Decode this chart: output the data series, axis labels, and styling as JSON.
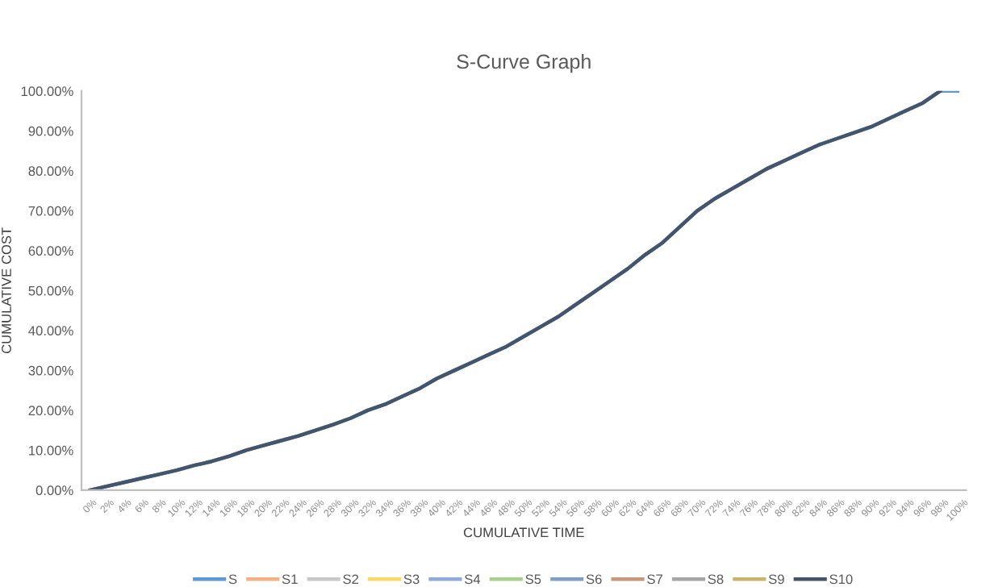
{
  "chart_data": {
    "type": "line",
    "title": "S-Curve Graph",
    "xlabel": "CUMULATIVE TIME",
    "ylabel": "CUMULATIVE COST",
    "categories": [
      "0%",
      "2%",
      "4%",
      "6%",
      "8%",
      "10%",
      "12%",
      "14%",
      "16%",
      "18%",
      "20%",
      "22%",
      "24%",
      "26%",
      "28%",
      "30%",
      "32%",
      "34%",
      "36%",
      "38%",
      "40%",
      "42%",
      "44%",
      "46%",
      "48%",
      "50%",
      "52%",
      "54%",
      "56%",
      "58%",
      "60%",
      "62%",
      "64%",
      "66%",
      "68%",
      "70%",
      "72%",
      "74%",
      "76%",
      "78%",
      "80%",
      "82%",
      "84%",
      "86%",
      "88%",
      "90%",
      "92%",
      "94%",
      "96%",
      "98%",
      "100%"
    ],
    "series": [
      {
        "name": "S",
        "color": "#5b9bd5",
        "values": [
          0,
          1,
          2,
          3,
          4,
          5,
          6.2,
          7.2,
          8.5,
          10,
          11.2,
          12.4,
          13.6,
          15,
          16.4,
          18,
          20,
          21.5,
          23.5,
          25.5,
          28,
          30,
          32,
          34,
          36,
          38.5,
          41,
          43.5,
          46.5,
          49.5,
          52.5,
          55.5,
          59,
          62,
          66,
          70,
          73,
          75.5,
          78,
          80.5,
          82.5,
          84.5,
          86.5,
          88,
          89.5,
          91,
          93,
          95,
          97,
          100,
          100
        ]
      },
      {
        "name": "S1",
        "color": "#f4b183",
        "values": [
          null,
          null,
          null,
          null,
          null,
          null,
          null,
          null,
          null,
          null,
          null,
          null,
          null,
          null,
          null,
          null,
          null,
          null,
          null,
          null,
          null,
          null,
          null,
          null,
          null,
          null,
          null,
          null,
          null,
          null,
          null,
          null,
          null,
          null,
          null,
          null,
          null,
          null,
          null,
          null,
          null,
          null,
          null,
          null,
          null,
          null,
          null,
          null,
          null,
          null,
          null
        ]
      },
      {
        "name": "S2",
        "color": "#c9c9c9",
        "values": [
          null,
          null,
          null,
          null,
          null,
          null,
          null,
          null,
          null,
          null,
          null,
          null,
          null,
          null,
          null,
          null,
          null,
          null,
          null,
          null,
          null,
          null,
          null,
          null,
          null,
          null,
          null,
          null,
          null,
          null,
          null,
          null,
          null,
          null,
          null,
          null,
          null,
          null,
          null,
          null,
          null,
          null,
          null,
          null,
          null,
          null,
          null,
          null,
          null,
          null,
          null
        ]
      },
      {
        "name": "S3",
        "color": "#ffd966",
        "values": [
          null,
          null,
          null,
          null,
          null,
          null,
          null,
          null,
          null,
          null,
          null,
          null,
          null,
          null,
          null,
          null,
          null,
          null,
          null,
          null,
          null,
          null,
          null,
          null,
          null,
          null,
          null,
          null,
          null,
          null,
          null,
          null,
          null,
          null,
          null,
          null,
          null,
          null,
          null,
          null,
          null,
          null,
          null,
          null,
          null,
          null,
          null,
          null,
          null,
          null,
          null
        ]
      },
      {
        "name": "S4",
        "color": "#8faadc",
        "values": [
          null,
          null,
          null,
          null,
          null,
          null,
          null,
          null,
          null,
          null,
          null,
          null,
          null,
          null,
          null,
          null,
          null,
          null,
          null,
          null,
          null,
          null,
          null,
          null,
          null,
          null,
          null,
          null,
          null,
          null,
          null,
          null,
          null,
          null,
          null,
          null,
          null,
          null,
          null,
          null,
          null,
          null,
          null,
          null,
          null,
          null,
          null,
          null,
          null,
          null,
          null
        ]
      },
      {
        "name": "S5",
        "color": "#a9d18e",
        "values": [
          null,
          null,
          null,
          null,
          null,
          null,
          null,
          null,
          null,
          null,
          null,
          null,
          null,
          null,
          null,
          null,
          null,
          null,
          null,
          null,
          null,
          null,
          null,
          null,
          null,
          null,
          null,
          null,
          null,
          null,
          null,
          null,
          null,
          null,
          null,
          null,
          null,
          null,
          null,
          null,
          null,
          null,
          null,
          null,
          null,
          null,
          null,
          null,
          null,
          null,
          null
        ]
      },
      {
        "name": "S6",
        "color": "#7f9fc6",
        "values": [
          null,
          null,
          null,
          null,
          null,
          null,
          null,
          null,
          null,
          null,
          null,
          null,
          null,
          null,
          null,
          null,
          null,
          null,
          null,
          null,
          null,
          null,
          null,
          null,
          null,
          null,
          null,
          null,
          null,
          null,
          null,
          null,
          null,
          null,
          null,
          null,
          null,
          null,
          null,
          null,
          null,
          null,
          null,
          null,
          null,
          null,
          null,
          null,
          null,
          null,
          null
        ]
      },
      {
        "name": "S7",
        "color": "#c9977b",
        "values": [
          null,
          null,
          null,
          null,
          null,
          null,
          null,
          null,
          null,
          null,
          null,
          null,
          null,
          null,
          null,
          null,
          null,
          null,
          null,
          null,
          null,
          null,
          null,
          null,
          null,
          null,
          null,
          null,
          null,
          null,
          null,
          null,
          null,
          null,
          null,
          null,
          null,
          null,
          null,
          null,
          null,
          null,
          null,
          null,
          null,
          null,
          null,
          null,
          null,
          null,
          null
        ]
      },
      {
        "name": "S8",
        "color": "#a6a6a6",
        "values": [
          null,
          null,
          null,
          null,
          null,
          null,
          null,
          null,
          null,
          null,
          null,
          null,
          null,
          null,
          null,
          null,
          null,
          null,
          null,
          null,
          null,
          null,
          null,
          null,
          null,
          null,
          null,
          null,
          null,
          null,
          null,
          null,
          null,
          null,
          null,
          null,
          null,
          null,
          null,
          null,
          null,
          null,
          null,
          null,
          null,
          null,
          null,
          null,
          null,
          null,
          null
        ]
      },
      {
        "name": "S9",
        "color": "#c9b36e",
        "values": [
          null,
          null,
          null,
          null,
          null,
          null,
          null,
          null,
          null,
          null,
          null,
          null,
          null,
          null,
          null,
          null,
          null,
          null,
          null,
          null,
          null,
          null,
          null,
          null,
          null,
          null,
          null,
          null,
          null,
          null,
          null,
          null,
          null,
          null,
          null,
          null,
          null,
          null,
          null,
          null,
          null,
          null,
          null,
          null,
          null,
          null,
          null,
          null,
          null,
          null,
          null
        ]
      },
      {
        "name": "S10",
        "color": "#44546a",
        "values": [
          0,
          1,
          2,
          3,
          4,
          5,
          6.2,
          7.2,
          8.5,
          10,
          11.2,
          12.4,
          13.6,
          15,
          16.4,
          18,
          20,
          21.5,
          23.5,
          25.5,
          28,
          30,
          32,
          34,
          36,
          38.5,
          41,
          43.5,
          46.5,
          49.5,
          52.5,
          55.5,
          59,
          62,
          66,
          70,
          73,
          75.5,
          78,
          80.5,
          82.5,
          84.5,
          86.5,
          88,
          89.5,
          91,
          93,
          95,
          97,
          100,
          null
        ]
      }
    ],
    "ylim": [
      0,
      100
    ],
    "yticks": [
      {
        "value": 0,
        "label": "0.00%"
      },
      {
        "value": 10,
        "label": "10.00%"
      },
      {
        "value": 20,
        "label": "20.00%"
      },
      {
        "value": 30,
        "label": "30.00%"
      },
      {
        "value": 40,
        "label": "40.00%"
      },
      {
        "value": 50,
        "label": "50.00%"
      },
      {
        "value": 60,
        "label": "60.00%"
      },
      {
        "value": 70,
        "label": "70.00%"
      },
      {
        "value": 80,
        "label": "80.00%"
      },
      {
        "value": 90,
        "label": "90.00%"
      },
      {
        "value": 100,
        "label": "100.00%"
      }
    ],
    "grid": false,
    "legend": "bottom",
    "marker": "none",
    "line_style": "solid"
  }
}
